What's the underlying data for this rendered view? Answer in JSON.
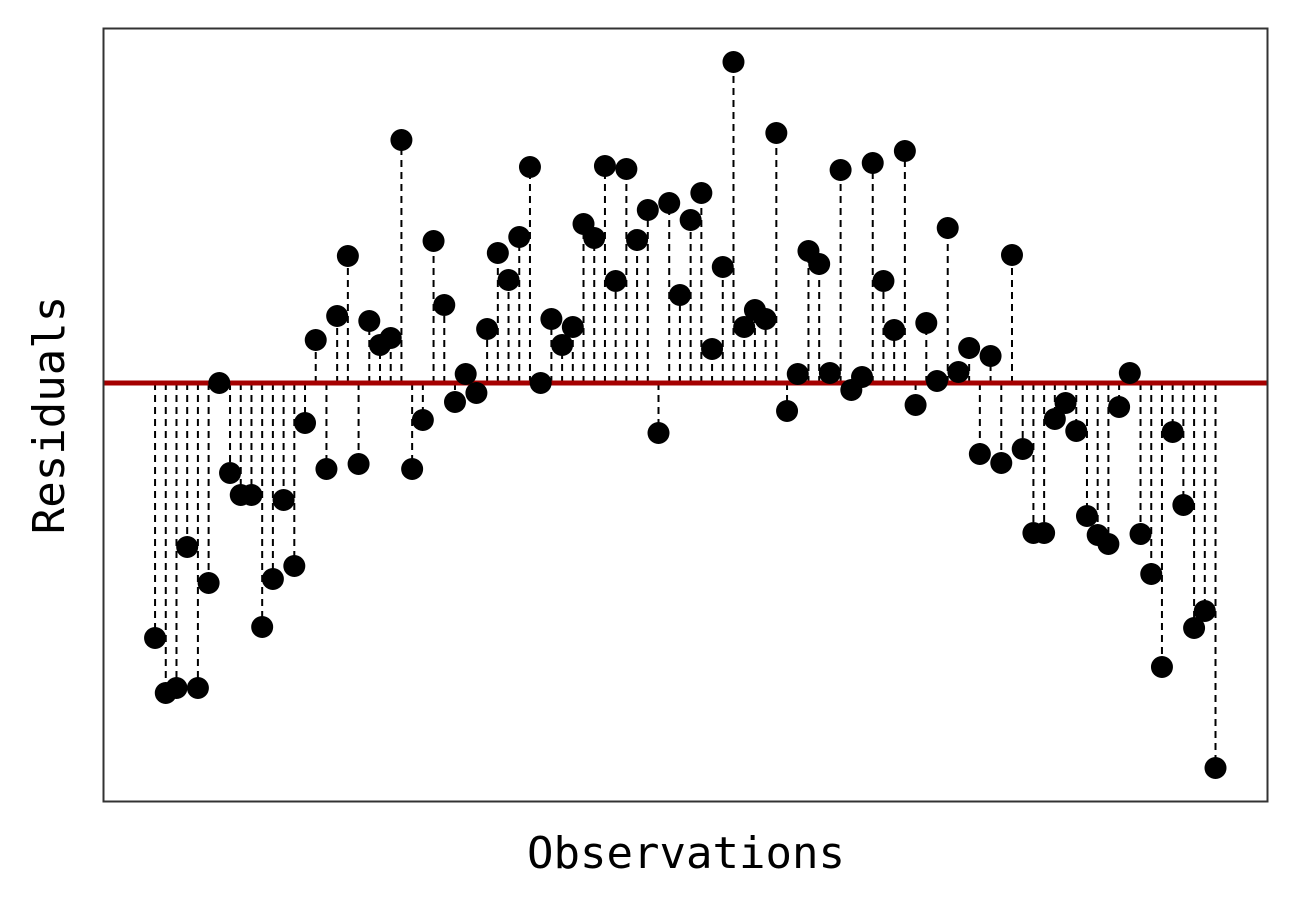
{
  "chart_data": {
    "type": "stem",
    "xlabel": "Observations",
    "ylabel": "Residuals",
    "x": [
      0,
      1,
      2,
      3,
      4,
      5,
      6,
      7,
      8,
      9,
      10,
      11,
      12,
      13,
      14,
      15,
      16,
      17,
      18,
      19,
      20,
      21,
      22,
      23,
      24,
      25,
      26,
      27,
      28,
      29,
      30,
      31,
      32,
      33,
      34,
      35,
      36,
      37,
      38,
      39,
      40,
      41,
      42,
      43,
      44,
      45,
      46,
      47,
      48,
      49,
      50,
      51,
      52,
      53,
      54,
      55,
      56,
      57,
      58,
      59,
      60,
      61,
      62,
      63,
      64,
      65,
      66,
      67,
      68,
      69,
      70,
      71,
      72,
      73,
      74,
      75,
      76,
      77,
      78,
      79,
      80,
      81,
      82,
      83,
      84,
      85,
      86,
      87,
      88,
      89,
      90,
      91,
      92,
      93,
      94,
      95,
      96,
      97,
      98,
      99
    ],
    "values": [
      -2.55,
      -3.1,
      -3.05,
      -1.64,
      -3.05,
      -2.0,
      0.0,
      -0.9,
      -1.12,
      -1.12,
      -2.44,
      -1.96,
      -1.17,
      -1.83,
      -0.4,
      0.43,
      -0.86,
      0.67,
      1.27,
      -0.81,
      0.62,
      0.38,
      0.45,
      2.43,
      -0.86,
      -0.37,
      1.42,
      0.78,
      -0.19,
      0.09,
      -0.1,
      0.54,
      1.3,
      1.03,
      1.46,
      2.16,
      0.0,
      0.64,
      0.38,
      0.56,
      1.59,
      1.45,
      2.17,
      1.02,
      2.14,
      1.43,
      1.73,
      -0.5,
      1.8,
      0.88,
      1.63,
      1.9,
      0.34,
      1.16,
      3.21,
      0.56,
      0.73,
      0.64,
      2.5,
      -0.28,
      0.09,
      1.32,
      1.19,
      0.1,
      2.13,
      -0.07,
      0.06,
      2.2,
      1.02,
      0.53,
      2.32,
      -0.22,
      0.6,
      0.02,
      1.55,
      0.11,
      0.35,
      -0.71,
      0.27,
      -0.8,
      1.28,
      -0.66,
      -1.5,
      -1.5,
      -0.36,
      -0.2,
      -0.48,
      -1.33,
      -1.52,
      -1.61,
      -0.24,
      0.1,
      -1.51,
      -1.91,
      -2.84,
      -0.49,
      -1.22,
      -2.45,
      -2.28,
      -3.85
    ],
    "color": "#000000",
    "reference_line": 0,
    "reference_color": "#a50000",
    "xlim": [
      -4.86,
      103.9
    ],
    "ylim": [
      -4.19,
      3.55
    ]
  }
}
